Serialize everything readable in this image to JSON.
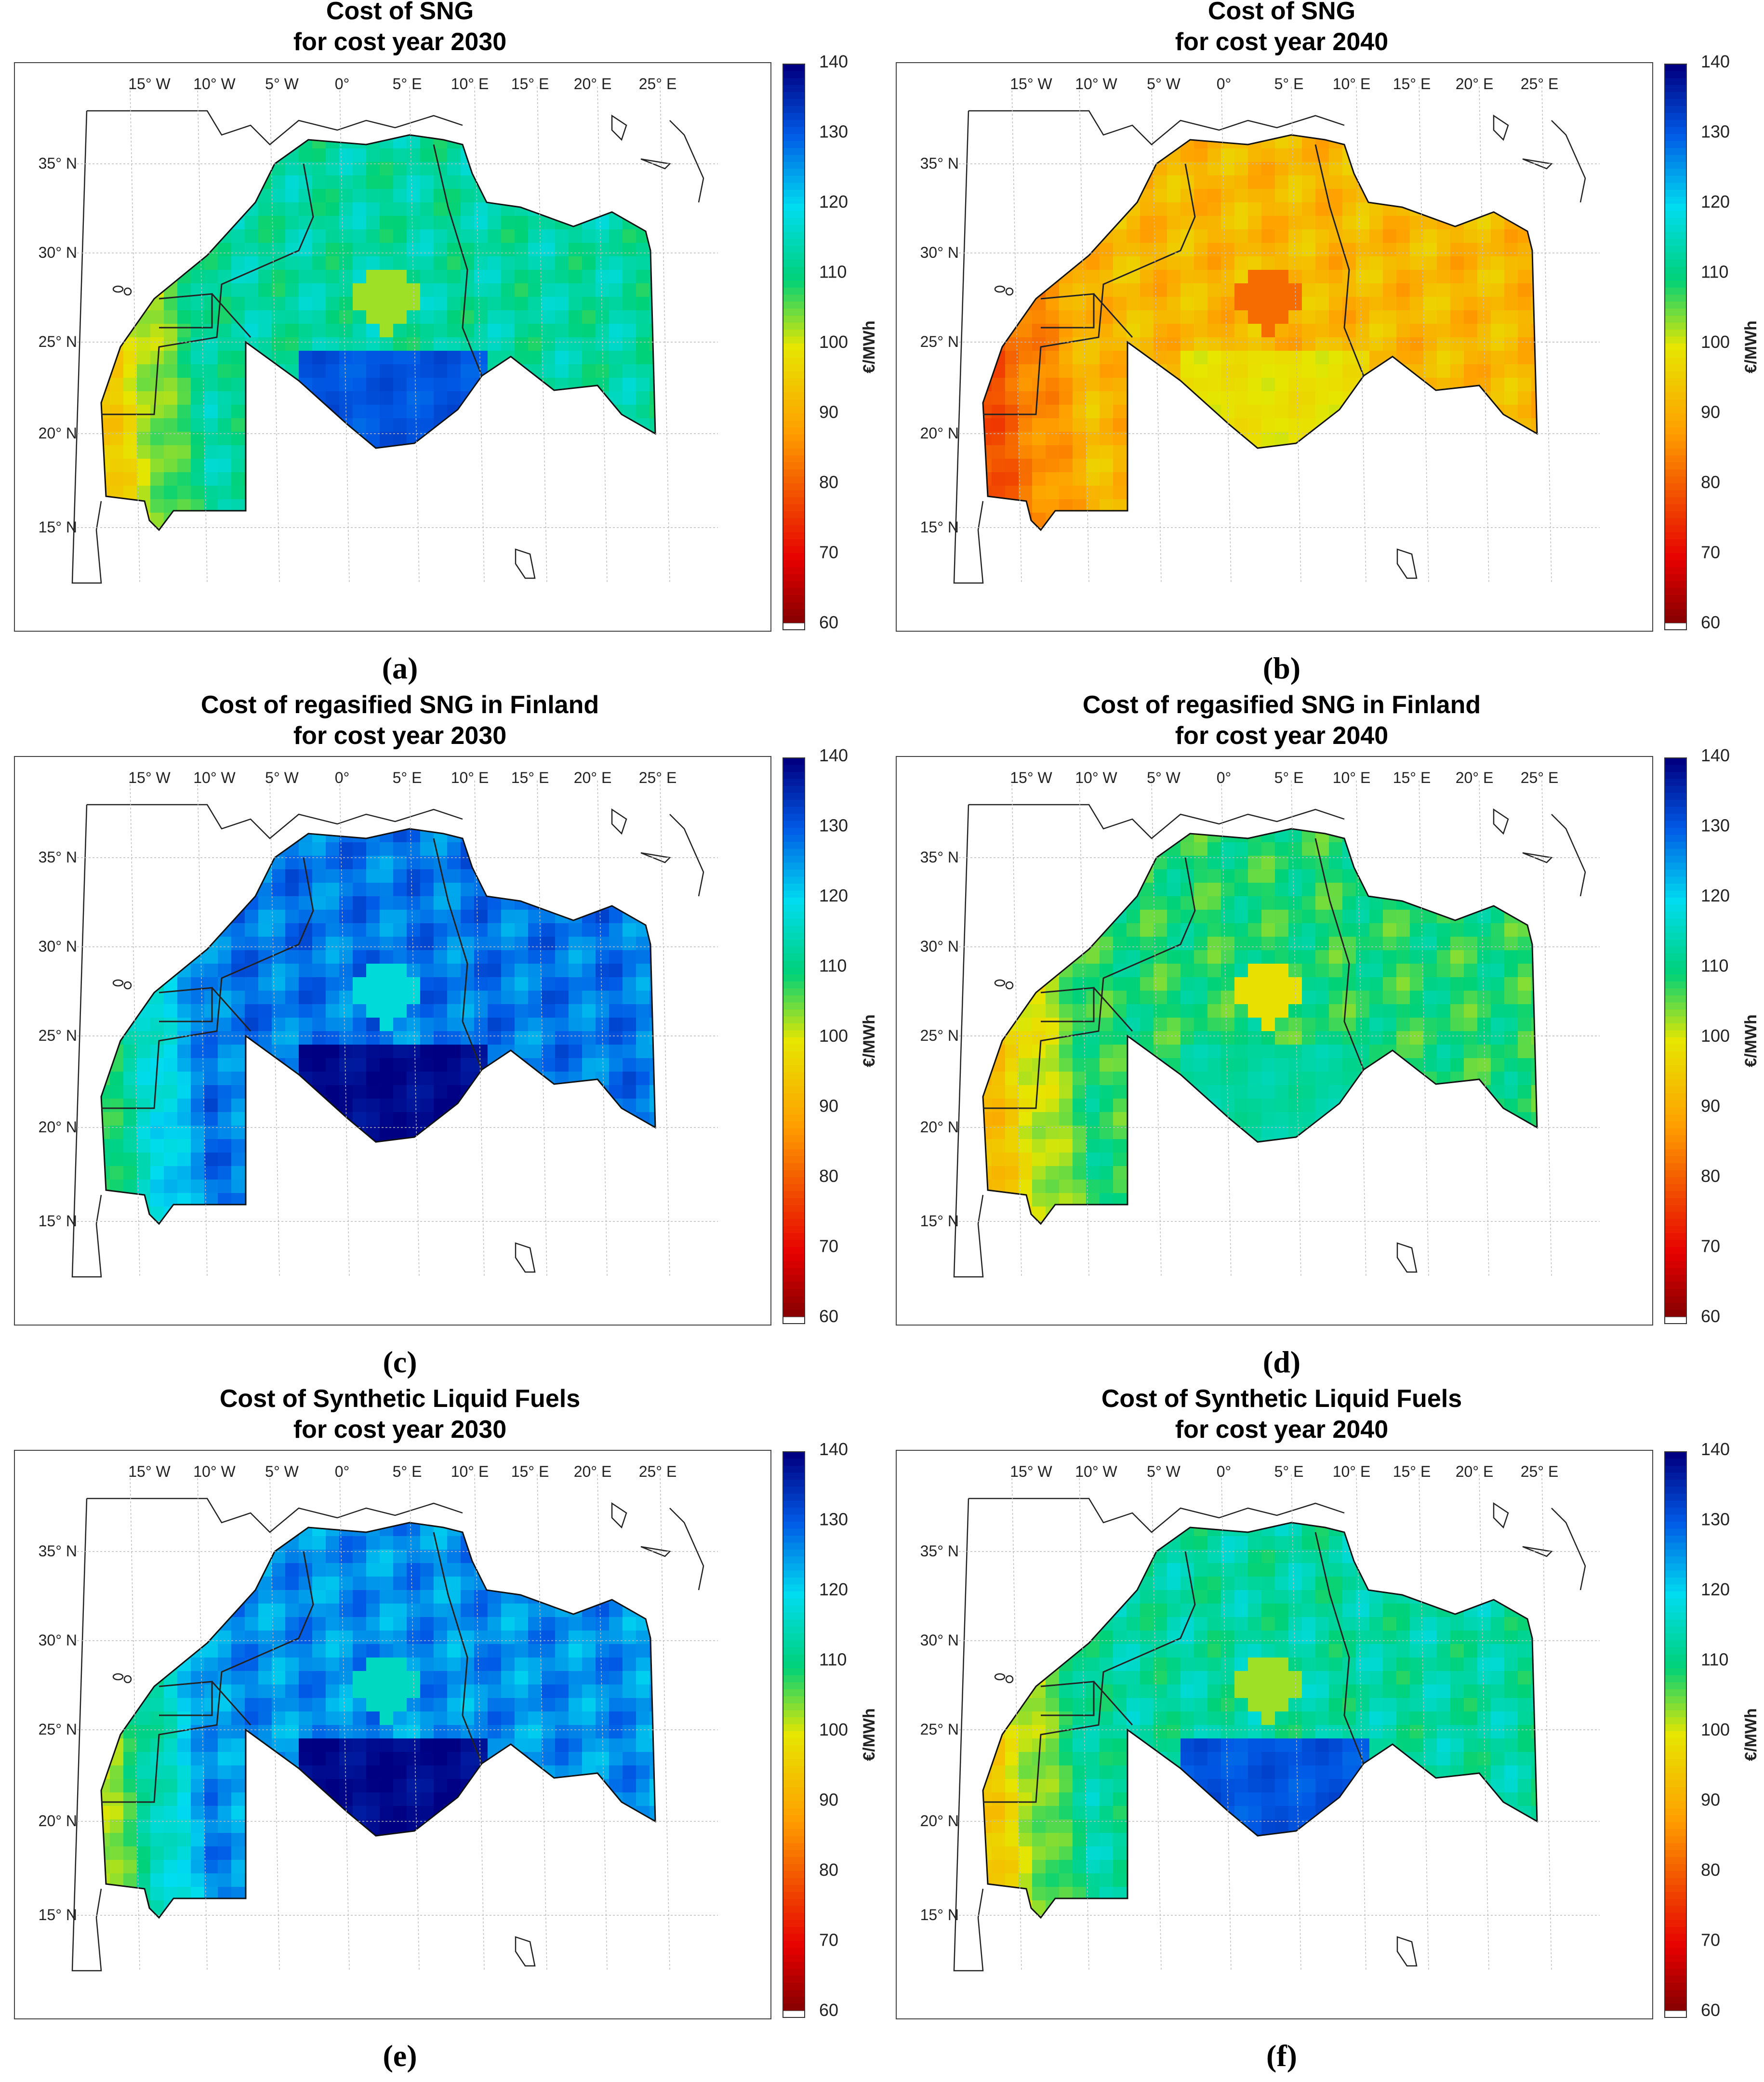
{
  "colorbar": {
    "unit": "€/MWh",
    "ticks": [
      "140",
      "130",
      "120",
      "110",
      "100",
      "90",
      "80",
      "70",
      "60"
    ],
    "range": [
      60,
      140
    ]
  },
  "axes": {
    "lon_labels": [
      "15° W",
      "10° W",
      "5° W",
      "0°",
      "5° E",
      "10° E",
      "15° E",
      "20° E",
      "25° E"
    ],
    "lat_labels": [
      "35° N",
      "30° N",
      "25° N",
      "20° N",
      "15° N"
    ]
  },
  "panels": [
    {
      "id": "a",
      "title_line1": "Cost of SNG",
      "title_line2": "for cost year 2030",
      "caption": "(a)",
      "base_cost": 113,
      "west_cost": 94,
      "south_cost": 131
    },
    {
      "id": "b",
      "title_line1": "Cost of SNG",
      "title_line2": "for cost year 2040",
      "caption": "(b)",
      "base_cost": 92,
      "west_cost": 78,
      "south_cost": 99
    },
    {
      "id": "c",
      "title_line1": "Cost of regasified SNG in Finland",
      "title_line2": "for cost year 2030",
      "caption": "(c)",
      "base_cost": 128,
      "west_cost": 108,
      "south_cost": 139
    },
    {
      "id": "d",
      "title_line1": "Cost of regasified SNG in Finland",
      "title_line2": "for cost year 2040",
      "caption": "(d)",
      "base_cost": 109,
      "west_cost": 92,
      "south_cost": 113
    },
    {
      "id": "e",
      "title_line1": "Cost of Synthetic Liquid Fuels",
      "title_line2": "for cost year 2030",
      "caption": "(e)",
      "base_cost": 126,
      "west_cost": 102,
      "south_cost": 139
    },
    {
      "id": "f",
      "title_line1": "Cost of Synthetic Liquid Fuels",
      "title_line2": "for cost year 2040",
      "caption": "(f)",
      "base_cost": 113,
      "west_cost": 94,
      "south_cost": 131
    }
  ]
}
